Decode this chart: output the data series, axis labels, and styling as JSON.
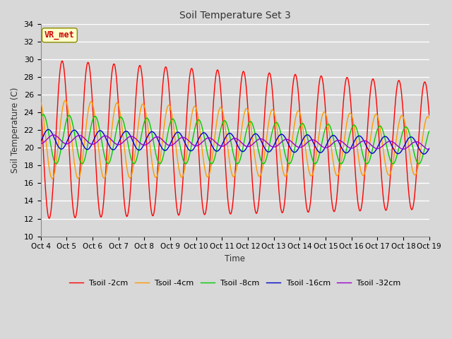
{
  "title": "Soil Temperature Set 3",
  "xlabel": "Time",
  "ylabel": "Soil Temperature (C)",
  "ylim": [
    10,
    34
  ],
  "yticks": [
    10,
    12,
    14,
    16,
    18,
    20,
    22,
    24,
    26,
    28,
    30,
    32,
    34
  ],
  "num_points": 720,
  "line_colors": [
    "#ff0000",
    "#ff9900",
    "#00cc00",
    "#0000cc",
    "#9900cc"
  ],
  "line_labels": [
    "Tsoil -2cm",
    "Tsoil -4cm",
    "Tsoil -8cm",
    "Tsoil -16cm",
    "Tsoil -32cm"
  ],
  "bg_color": "#d8d8d8",
  "grid_color": "#ffffff",
  "annotation_text": "VR_met",
  "annotation_color": "#cc0000",
  "annotation_bg": "#ffffcc",
  "annotation_border": "#888800",
  "base_temp": 21.0,
  "base_cooling": 0.05,
  "amp_2cm_start": 9.0,
  "amp_2cm_decay": 0.12,
  "amp_4cm_start": 4.5,
  "amp_4cm_decay": 0.08,
  "amp_8cm_start": 2.8,
  "amp_8cm_decay": 0.05,
  "amp_16cm_start": 1.1,
  "amp_16cm_decay": 0.01,
  "amp_32cm_start": 0.5,
  "amp_32cm_decay": 0.005,
  "phase_2cm": 0.58,
  "phase_4cm": 0.7,
  "phase_8cm": 0.85,
  "phase_16cm": 1.05,
  "phase_32cm": 1.25,
  "x_tick_days": [
    0,
    1,
    2,
    3,
    4,
    5,
    6,
    7,
    8,
    9,
    10,
    11,
    12,
    13,
    14,
    15
  ],
  "x_tick_labels": [
    "Oct 4",
    "Oct 5",
    "Oct 6",
    "Oct 7",
    "Oct 8",
    "Oct 9",
    "Oct 10",
    "Oct 11",
    "Oct 12",
    "Oct 13",
    "Oct 14",
    "Oct 15",
    "Oct 16",
    "Oct 17",
    "Oct 18",
    "Oct 19"
  ]
}
